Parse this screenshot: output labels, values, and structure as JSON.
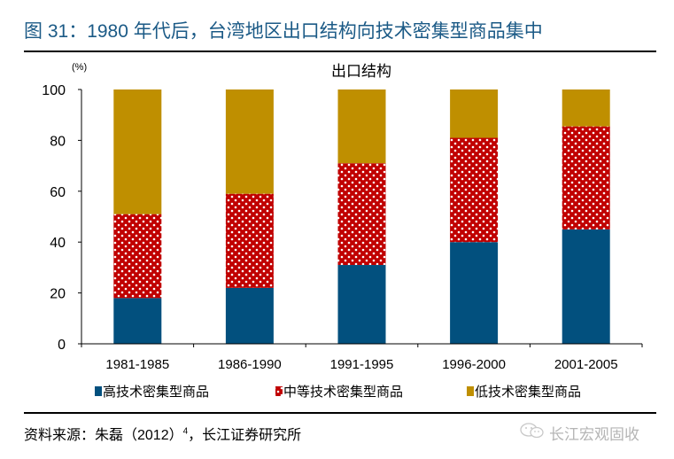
{
  "figure": {
    "title": "图 31：1980 年代后，台湾地区出口结构向技术密集型商品集中",
    "source_prefix": "资料来源：朱磊（2012）",
    "source_sup": "4",
    "source_suffix": "，长江证券研究所",
    "watermark": "长江宏观固收",
    "watermark_icon": "wechat-icon"
  },
  "colors": {
    "title": "#1b5a86",
    "high": "#02507e",
    "mid": "#c00000",
    "low": "#bf8f00"
  },
  "chart_data": {
    "type": "bar",
    "stacked": true,
    "title": "出口结构",
    "ylabel": "(%)",
    "xlabel": "",
    "ylim": [
      0,
      100
    ],
    "yticks": [
      "0",
      "20",
      "40",
      "60",
      "80",
      "100"
    ],
    "categories": [
      "1981-1985",
      "1986-1990",
      "1991-1995",
      "1996-2000",
      "2001-2005"
    ],
    "series": [
      {
        "name": "高技术密集型商品",
        "color": "#02507e",
        "pattern": "solid",
        "values": [
          18,
          22,
          31,
          40,
          45
        ]
      },
      {
        "name": "中等技术密集型商品",
        "color": "#c00000",
        "pattern": "dots",
        "values": [
          33,
          37,
          40,
          41,
          40.5
        ]
      },
      {
        "name": "低技术密集型商品",
        "color": "#bf8f00",
        "pattern": "solid",
        "values": [
          49,
          41,
          29,
          19,
          14.5
        ]
      }
    ],
    "grid": false,
    "legend": "bottom"
  }
}
